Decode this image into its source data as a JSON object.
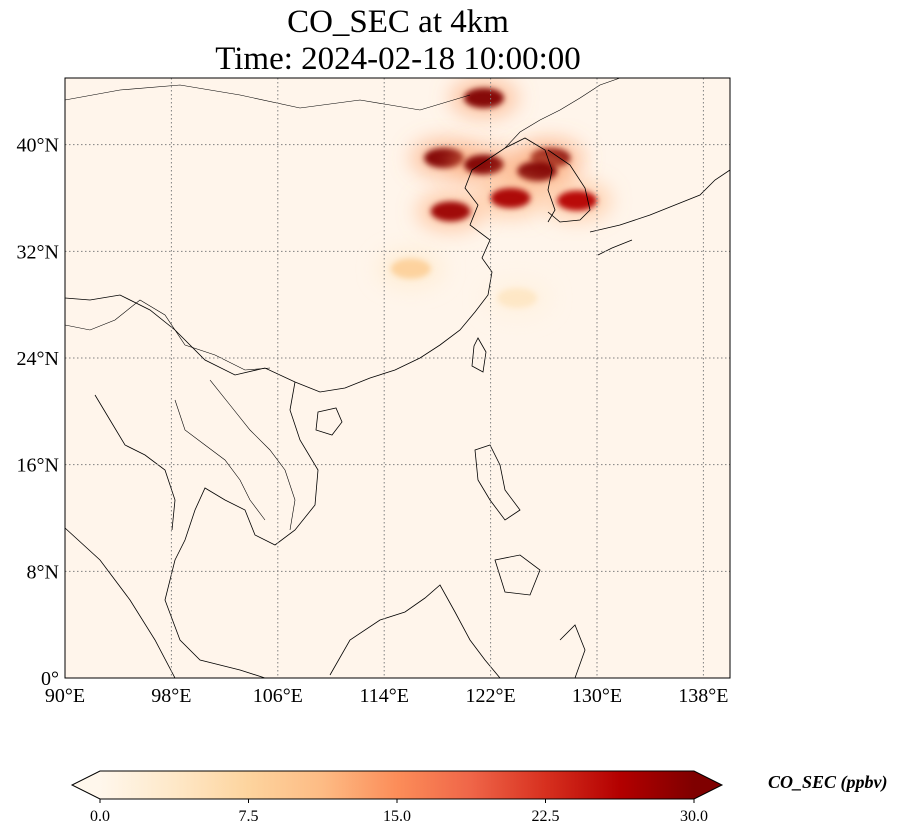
{
  "figure": {
    "title_line1": "CO_SEC at 4km",
    "title_line2": "Time: 2024-02-18 10:00:00"
  },
  "map": {
    "variable": "CO_SEC",
    "level": "4km",
    "projection": "PlateCarree",
    "lon_range": [
      90,
      140
    ],
    "lat_range": [
      0,
      45
    ],
    "lon_ticks": [
      {
        "value": 90,
        "label": "90°E"
      },
      {
        "value": 98,
        "label": "98°E"
      },
      {
        "value": 106,
        "label": "106°E"
      },
      {
        "value": 114,
        "label": "114°E"
      },
      {
        "value": 122,
        "label": "122°E"
      },
      {
        "value": 130,
        "label": "130°E"
      },
      {
        "value": 138,
        "label": "138°E"
      }
    ],
    "lat_ticks": [
      {
        "value": 0,
        "label": "0°"
      },
      {
        "value": 8,
        "label": "8°N"
      },
      {
        "value": 16,
        "label": "16°N"
      },
      {
        "value": 24,
        "label": "24°N"
      },
      {
        "value": 32,
        "label": "32°N"
      },
      {
        "value": 40,
        "label": "40°N"
      }
    ],
    "gridlines": "dotted",
    "background_color": "#fff5eb",
    "hotspots": [
      {
        "lon": 121.5,
        "lat": 43.5,
        "value": 30
      },
      {
        "lon": 118.5,
        "lat": 39.0,
        "value": 30
      },
      {
        "lon": 121.5,
        "lat": 38.5,
        "value": 30
      },
      {
        "lon": 126.5,
        "lat": 39.0,
        "value": 30
      },
      {
        "lon": 125.5,
        "lat": 38.0,
        "value": 30
      },
      {
        "lon": 119.0,
        "lat": 35.0,
        "value": 28
      },
      {
        "lon": 123.5,
        "lat": 36.0,
        "value": 27
      },
      {
        "lon": 128.5,
        "lat": 35.8,
        "value": 26
      },
      {
        "lon": 116.0,
        "lat": 30.7,
        "value": 8
      },
      {
        "lon": 124.0,
        "lat": 28.5,
        "value": 4
      }
    ]
  },
  "colorbar": {
    "label": "CO_SEC (ppbv)",
    "min": 0.0,
    "max": 30.0,
    "extend": "both",
    "cmap": "OrRd",
    "colors": [
      "#fff7ec",
      "#fee8c8",
      "#fdd49e",
      "#fdbb84",
      "#fc8d59",
      "#ef6548",
      "#d7301f",
      "#b30000",
      "#7f0000"
    ],
    "ticks": [
      {
        "value": 0.0,
        "label": "0.0"
      },
      {
        "value": 7.5,
        "label": "7.5"
      },
      {
        "value": 15.0,
        "label": "15.0"
      },
      {
        "value": 22.5,
        "label": "22.5"
      },
      {
        "value": 30.0,
        "label": "30.0"
      }
    ]
  }
}
